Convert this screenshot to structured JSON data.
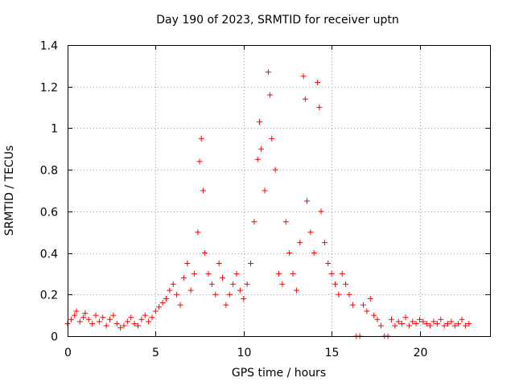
{
  "chart_data": {
    "type": "scatter",
    "title": "Day 190 of 2023, SRMTID for receiver uptn",
    "xlabel": "GPS time / hours",
    "ylabel": "SRMTID / TECUs",
    "xlim": [
      0,
      24
    ],
    "ylim": [
      0,
      1.4
    ],
    "xticks": [
      0,
      5,
      10,
      15,
      20
    ],
    "yticks": [
      0,
      0.2,
      0.4,
      0.6,
      0.8,
      1,
      1.2,
      1.4
    ],
    "ytick_labels": [
      "0",
      "0.2",
      "0.4",
      "0.6",
      "0.8",
      "1",
      "1.2",
      "1.4"
    ],
    "grid": true,
    "marker": "+",
    "color": "#ff0000",
    "series": [
      {
        "name": "SRMTID",
        "x": [
          0.0,
          0.2,
          0.4,
          0.5,
          0.7,
          0.9,
          1.0,
          1.2,
          1.4,
          1.6,
          1.8,
          2.0,
          2.2,
          2.4,
          2.6,
          2.8,
          3.0,
          3.2,
          3.4,
          3.6,
          3.8,
          4.0,
          4.2,
          4.4,
          4.6,
          4.8,
          5.0,
          5.2,
          5.4,
          5.6,
          5.8,
          6.0,
          6.2,
          6.4,
          6.6,
          6.8,
          7.0,
          7.2,
          7.4,
          7.5,
          7.6,
          7.7,
          7.8,
          8.0,
          8.2,
          8.4,
          8.6,
          8.8,
          9.0,
          9.2,
          9.4,
          9.6,
          9.8,
          10.0,
          10.2,
          10.4,
          10.6,
          10.8,
          10.9,
          11.0,
          11.2,
          11.4,
          11.5,
          11.6,
          11.8,
          12.0,
          12.2,
          12.4,
          12.6,
          12.8,
          13.0,
          13.2,
          13.4,
          13.5,
          13.6,
          13.8,
          14.0,
          14.2,
          14.3,
          14.4,
          14.6,
          14.8,
          15.0,
          15.2,
          15.4,
          15.6,
          15.8,
          16.0,
          16.2,
          16.4,
          16.6,
          16.8,
          17.0,
          17.2,
          17.4,
          17.6,
          17.8,
          18.0,
          18.2,
          18.4,
          18.6,
          18.8,
          19.0,
          19.2,
          19.4,
          19.6,
          19.8,
          20.0,
          20.2,
          20.4,
          20.6,
          20.8,
          21.0,
          21.2,
          21.4,
          21.6,
          21.8,
          22.0,
          22.2,
          22.4,
          22.6,
          22.8
        ],
        "y": [
          0.06,
          0.08,
          0.1,
          0.12,
          0.07,
          0.09,
          0.11,
          0.08,
          0.06,
          0.1,
          0.07,
          0.09,
          0.05,
          0.08,
          0.1,
          0.06,
          0.04,
          0.05,
          0.07,
          0.09,
          0.06,
          0.05,
          0.08,
          0.1,
          0.07,
          0.09,
          0.12,
          0.14,
          0.16,
          0.18,
          0.22,
          0.25,
          0.2,
          0.15,
          0.28,
          0.35,
          0.22,
          0.3,
          0.5,
          0.84,
          0.95,
          0.7,
          0.4,
          0.3,
          0.25,
          0.2,
          0.35,
          0.28,
          0.15,
          0.2,
          0.25,
          0.3,
          0.22,
          0.18,
          0.25,
          0.35,
          0.55,
          0.85,
          1.03,
          0.9,
          0.7,
          1.27,
          1.16,
          0.95,
          0.8,
          0.3,
          0.25,
          0.55,
          0.4,
          0.3,
          0.22,
          0.45,
          1.25,
          1.14,
          0.65,
          0.5,
          0.4,
          1.22,
          1.1,
          0.6,
          0.45,
          0.35,
          0.3,
          0.25,
          0.2,
          0.3,
          0.25,
          0.2,
          0.15,
          0.0,
          0.0,
          0.15,
          0.12,
          0.18,
          0.1,
          0.08,
          0.05,
          0.0,
          0.0,
          0.08,
          0.05,
          0.07,
          0.06,
          0.09,
          0.05,
          0.07,
          0.06,
          0.08,
          0.07,
          0.06,
          0.05,
          0.07,
          0.06,
          0.08,
          0.05,
          0.06,
          0.07,
          0.05,
          0.06,
          0.08,
          0.05,
          0.06
        ]
      }
    ]
  }
}
